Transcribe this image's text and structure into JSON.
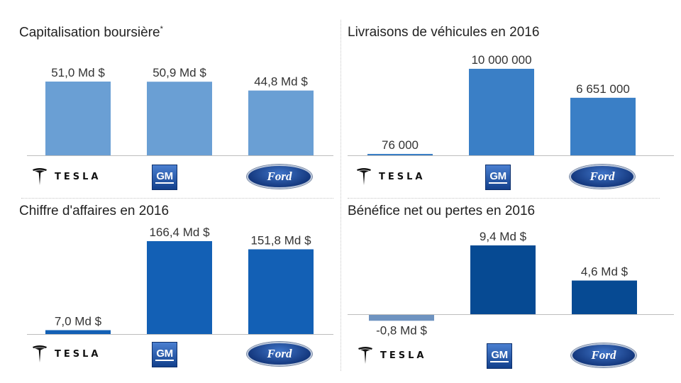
{
  "brands": {
    "tesla": "TESLA",
    "gm": "GM",
    "ford": "Ford"
  },
  "chart_data": [
    {
      "type": "bar",
      "title": "Capitalisation boursière",
      "title_mark": "*",
      "categories": [
        "Tesla",
        "GM",
        "Ford"
      ],
      "values": [
        51.0,
        50.9,
        44.8
      ],
      "labels": [
        "51,0 Md $",
        "50,9 Md $",
        "44,8 Md $"
      ],
      "unit": "Md $",
      "color": "#6a9fd4"
    },
    {
      "type": "bar",
      "title": "Livraisons de véhicules en 2016",
      "categories": [
        "Tesla",
        "GM",
        "Ford"
      ],
      "values": [
        76000,
        10000000,
        6651000
      ],
      "labels": [
        "76 000",
        "10 000 000",
        "6 651 000"
      ],
      "color": "#3a7fc6"
    },
    {
      "type": "bar",
      "title": "Chiffre d'affaires en 2016",
      "categories": [
        "Tesla",
        "GM",
        "Ford"
      ],
      "values": [
        7.0,
        166.4,
        151.8
      ],
      "labels": [
        "7,0 Md $",
        "166,4 Md $",
        "151,8 Md $"
      ],
      "unit": "Md $",
      "color": "#1360b5"
    },
    {
      "type": "bar",
      "title": "Bénéfice net ou pertes en 2016",
      "categories": [
        "Tesla",
        "GM",
        "Ford"
      ],
      "values": [
        -0.8,
        9.4,
        4.6
      ],
      "labels": [
        "-0,8 Md $",
        "9,4 Md $",
        "4,6 Md $"
      ],
      "unit": "Md $",
      "color": "#064a93",
      "negative_color": "#6e93c0"
    }
  ]
}
